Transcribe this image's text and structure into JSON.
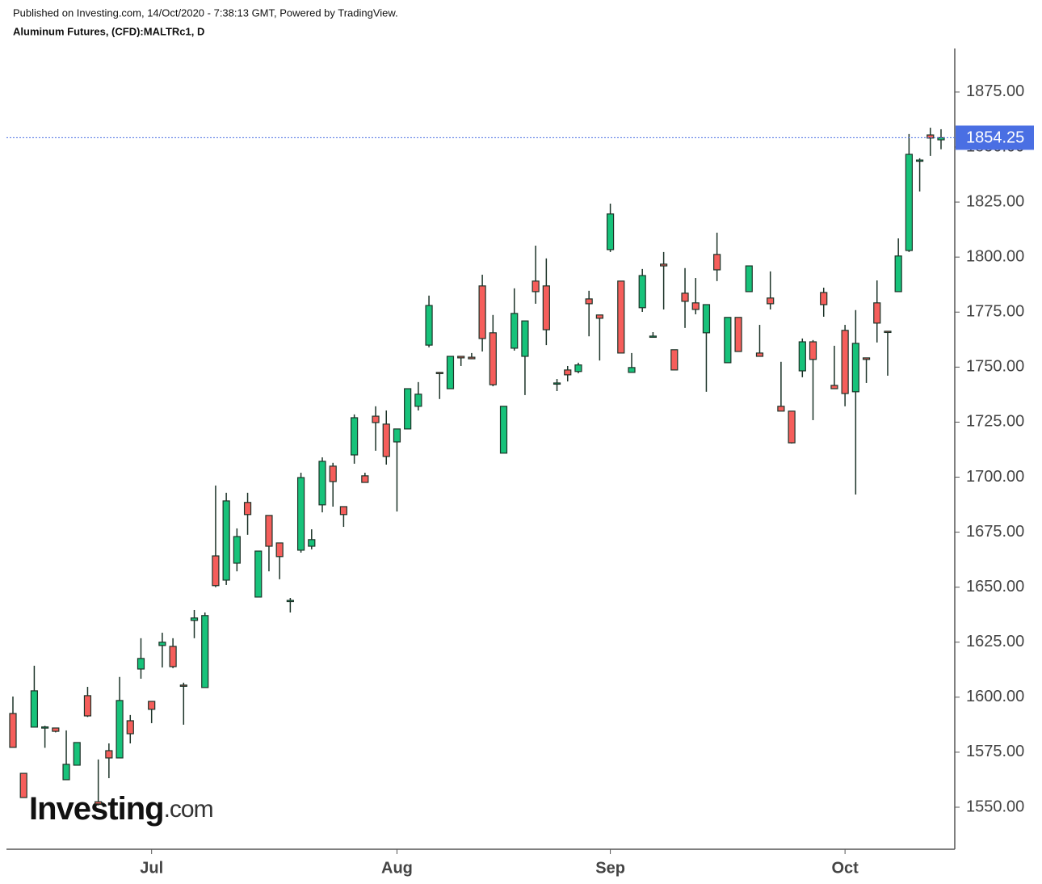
{
  "chart_data": {
    "type": "candlestick",
    "subtitle": "Published on Investing.com, 14/Oct/2020 - 7:38:13 GMT, Powered by TradingView.",
    "title": "Aluminum Futures, (CFD):MALTRc1, D",
    "categories": [
      null,
      null,
      null,
      null,
      null,
      null,
      null,
      null,
      null,
      null,
      null,
      null,
      null,
      "Jul",
      null,
      null,
      null,
      null,
      null,
      null,
      null,
      null,
      null,
      null,
      null,
      null,
      null,
      null,
      null,
      null,
      null,
      null,
      null,
      null,
      null,
      null,
      "Aug",
      null,
      null,
      null,
      null,
      null,
      null,
      null,
      null,
      null,
      null,
      null,
      null,
      null,
      null,
      null,
      null,
      null,
      null,
      null,
      "Sep",
      null,
      null,
      null,
      null,
      null,
      null,
      null,
      null,
      null,
      null,
      null,
      null,
      null,
      null,
      null,
      null,
      null,
      null,
      null,
      null,
      null,
      "Oct",
      null,
      null,
      null,
      null,
      null,
      null,
      null,
      null,
      null
    ],
    "open": [
      1592.6,
      1565.4,
      1586.4,
      1586,
      1586,
      1562.5,
      1569.1,
      1600.7,
      1552.5,
      1575.7,
      1572.4,
      1589.3,
      1612.8,
      1598.1,
      1623.5,
      1623.1,
      1605.5,
      1634.9,
      1604.4,
      1664.2,
      1653.2,
      1660.9,
      1688.5,
      1645.5,
      1682.6,
      1670.1,
      1644,
      1666.8,
      1668.6,
      1687.4,
      1705,
      1686.6,
      1710.1,
      1700.6,
      1727.7,
      1724.1,
      1716,
      1721.9,
      1732.2,
      1760,
      1747.6,
      1740.2,
      1754.9,
      1754.5,
      1786.9,
      1765.6,
      1710.9,
      1758.6,
      1754.9,
      1789.1,
      1786.9,
      1742.8,
      1748.7,
      1748,
      1781,
      1773.7,
      1803.4,
      1789.1,
      1747.6,
      1777,
      1764.1,
      1796.8,
      1757.9,
      1783.6,
      1779.2,
      1765.6,
      1801.2,
      1752,
      1772.6,
      1784.3,
      1756.4,
      1781.4,
      1732.2,
      1730,
      1748.3,
      1761.5,
      1783.9,
      1741.7,
      1766.7,
      1738.8,
      1754.2,
      1779.2,
      1766.3,
      1784.3,
      1803,
      1843.8,
      1855.5,
      1853.3
    ],
    "high": [
      1600.3,
      1565.4,
      1614.3,
      1587,
      1586,
      1584.9,
      1579.4,
      1604.7,
      1571.7,
      1579,
      1609.2,
      1591.9,
      1626.8,
      1598.1,
      1629.3,
      1626.8,
      1606.6,
      1639.6,
      1638.5,
      1696.2,
      1692.9,
      1676.7,
      1692.9,
      1666.4,
      1682.6,
      1670.1,
      1645.1,
      1702,
      1676.3,
      1709,
      1706.5,
      1686.6,
      1728.5,
      1702,
      1732.2,
      1730.3,
      1721.9,
      1740.2,
      1743.2,
      1782.5,
      1747.6,
      1754.9,
      1755,
      1756.4,
      1792,
      1773.7,
      1732.2,
      1785.8,
      1771,
      1805.2,
      1799.4,
      1744.6,
      1750.5,
      1752,
      1784.7,
      1773.7,
      1824.3,
      1789.1,
      1756.4,
      1794.6,
      1765.9,
      1802.3,
      1757.9,
      1795,
      1790.5,
      1778.4,
      1811.1,
      1772.6,
      1772.6,
      1796,
      1769.2,
      1793.5,
      1752.4,
      1730,
      1763,
      1762.3,
      1786.1,
      1759.7,
      1769.2,
      1775.9,
      1754.2,
      1789.4,
      1766.3,
      1808.5,
      1855.9,
      1844.9,
      1858.8,
      1858.1
    ],
    "low": [
      1577,
      1554.4,
      1586.4,
      1577,
      1584,
      1562.5,
      1569,
      1591,
      1550.8,
      1563.2,
      1572.4,
      1579,
      1608.4,
      1588.2,
      1613.5,
      1613.2,
      1587.5,
      1626.8,
      1604.4,
      1650,
      1651,
      1657.2,
      1673.8,
      1645.5,
      1657.2,
      1653.6,
      1638.5,
      1665.7,
      1667.2,
      1684,
      1686.6,
      1677.4,
      1706.1,
      1697.6,
      1712,
      1705.7,
      1684.4,
      1721.9,
      1730.3,
      1759,
      1735.5,
      1740.2,
      1750.5,
      1753.8,
      1757.1,
      1741.3,
      1710.9,
      1757.5,
      1737.3,
      1778.8,
      1760,
      1739.1,
      1743.5,
      1747.2,
      1764,
      1753,
      1802.3,
      1756.4,
      1747.6,
      1775.1,
      1763.7,
      1776.2,
      1748.7,
      1767.8,
      1774,
      1738.8,
      1789.1,
      1752,
      1757.1,
      1784.3,
      1754.9,
      1776.2,
      1730,
      1715.3,
      1745.4,
      1725.9,
      1772.9,
      1740.2,
      1732.2,
      1692.1,
      1742.8,
      1761.2,
      1746.1,
      1784.3,
      1802.3,
      1829.8,
      1846,
      1849
    ],
    "close": [
      1577.2,
      1554.4,
      1602.9,
      1586.5,
      1584.5,
      1569.5,
      1579.4,
      1591.5,
      1551.5,
      1572.4,
      1598.5,
      1583.4,
      1617.6,
      1594.5,
      1625,
      1613.9,
      1605,
      1636,
      1637.1,
      1650.7,
      1689.2,
      1673,
      1683,
      1666.4,
      1668.6,
      1663.9,
      1644,
      1699.8,
      1671.6,
      1707.2,
      1698,
      1683,
      1727,
      1697.6,
      1724.8,
      1709.4,
      1721.9,
      1740.2,
      1737.7,
      1778,
      1747.3,
      1754.9,
      1754.2,
      1753.8,
      1763,
      1742,
      1732.2,
      1774.4,
      1771,
      1784.3,
      1767,
      1742.8,
      1746.5,
      1751,
      1778.8,
      1772.2,
      1819.6,
      1756.4,
      1749.8,
      1791.6,
      1764.1,
      1796,
      1748.7,
      1779.9,
      1776.2,
      1778.4,
      1794.2,
      1772.6,
      1757.1,
      1796,
      1754.9,
      1778.8,
      1730,
      1715.6,
      1761.5,
      1753.5,
      1778.4,
      1740.2,
      1738,
      1760.8,
      1753.5,
      1770,
      1765.9,
      1800.5,
      1846.7,
      1844.1,
      1854.1,
      1854.25
    ],
    "up_color": "#17c27a",
    "down_color": "#f55e5b",
    "outline_color": "#1c3328",
    "ylim": [
      1530.9,
      1894.8
    ],
    "yticks": [
      {
        "value": 1550,
        "label": "1550.00"
      },
      {
        "value": 1575,
        "label": "1575.00"
      },
      {
        "value": 1600,
        "label": "1600.00"
      },
      {
        "value": 1625,
        "label": "1625.00"
      },
      {
        "value": 1650,
        "label": "1650.00"
      },
      {
        "value": 1675,
        "label": "1675.00"
      },
      {
        "value": 1700,
        "label": "1700.00"
      },
      {
        "value": 1725,
        "label": "1725.00"
      },
      {
        "value": 1750,
        "label": "1750.00"
      },
      {
        "value": 1775,
        "label": "1775.00"
      },
      {
        "value": 1800,
        "label": "1800.00"
      },
      {
        "value": 1825,
        "label": "1825.00"
      },
      {
        "value": 1850,
        "label": "1850.00"
      },
      {
        "value": 1875,
        "label": "1875.00"
      }
    ],
    "last_price": 1854.25,
    "last_price_color": "#4a6fe3",
    "grid": false
  },
  "watermark": {
    "brand": "Investing",
    "suffix": ".com"
  }
}
